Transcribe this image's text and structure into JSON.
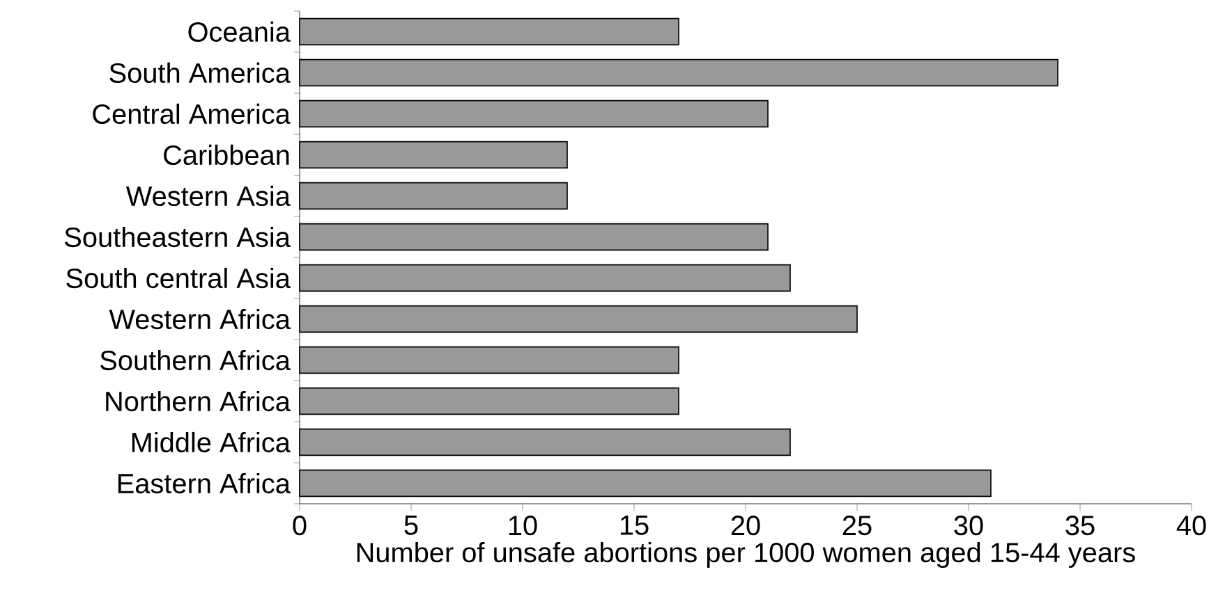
{
  "chart_data": {
    "type": "bar",
    "orientation": "horizontal",
    "xlabel": "Number of unsafe abortions per 1000 women aged 15-44 years",
    "categories": [
      "Oceania",
      "South America",
      "Central America",
      "Caribbean",
      "Western Asia",
      "Southeastern Asia",
      "South central Asia",
      "Western Africa",
      "Southern Africa",
      "Northern Africa",
      "Middle Africa",
      "Eastern Africa"
    ],
    "values": [
      17,
      34,
      21,
      12,
      12,
      21,
      22,
      25,
      17,
      17,
      22,
      31
    ],
    "color": "#999999",
    "xlim": [
      0,
      40
    ],
    "xticks": [
      0,
      5,
      10,
      15,
      20,
      25,
      30,
      35,
      40
    ],
    "grid": false
  }
}
